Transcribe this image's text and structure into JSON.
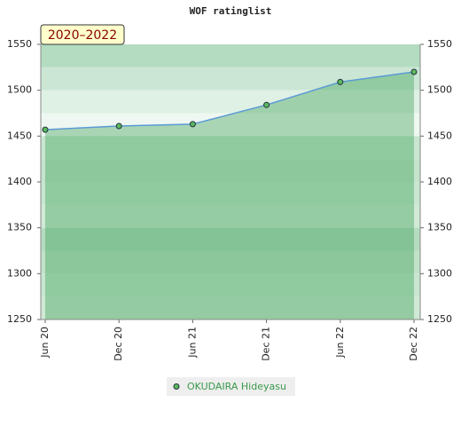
{
  "chart_data": {
    "type": "line",
    "title": "WOF ratinglist",
    "badge": "2020–2022",
    "categories": [
      "Jun 20",
      "Dec 20",
      "Jun 21",
      "Dec 21",
      "Jun 22",
      "Dec 22"
    ],
    "series": [
      {
        "name": "OKUDAIRA Hideyasu",
        "color": "#5cb85c",
        "values": [
          1457,
          1461,
          1463,
          1484,
          1509,
          1520
        ]
      }
    ],
    "ylim": [
      1250,
      1550
    ],
    "yticks": [
      1250,
      1300,
      1350,
      1400,
      1450,
      1500,
      1550
    ],
    "y2lim": [
      1250,
      1550
    ],
    "y2ticks": [
      1250,
      1300,
      1350,
      1400,
      1450,
      1500,
      1550
    ]
  }
}
